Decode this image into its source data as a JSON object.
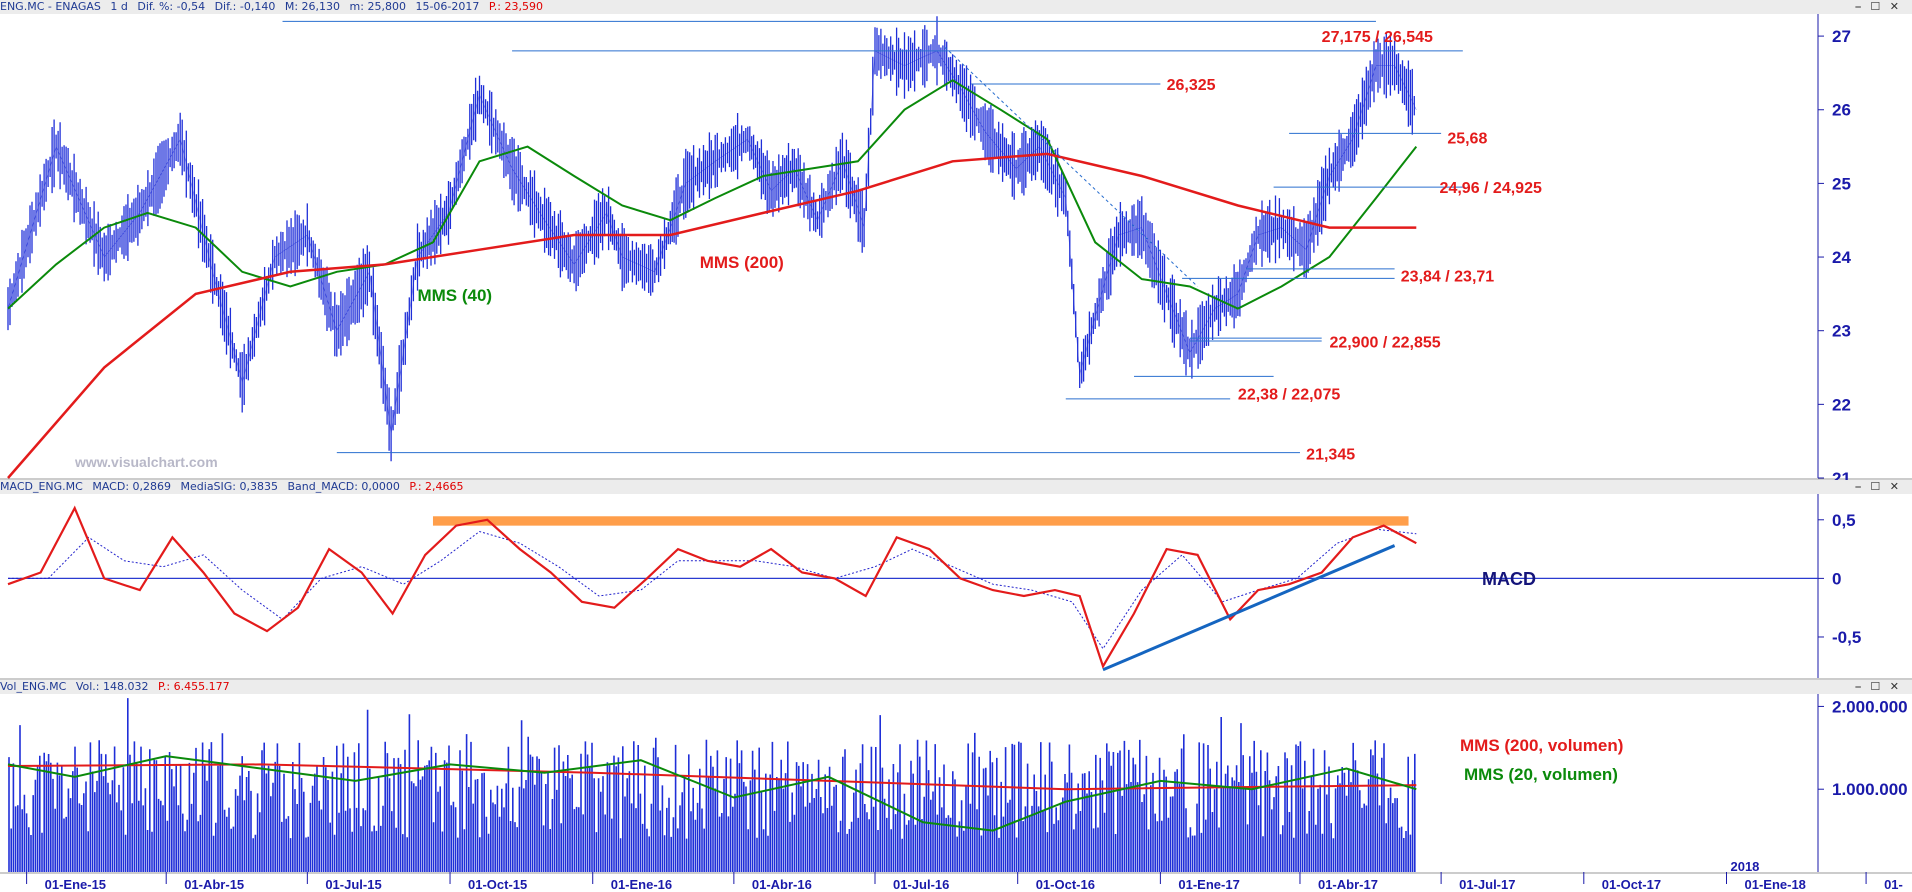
{
  "price_header": {
    "symbol": "ENG.MC - ENAGAS",
    "period": "1 d",
    "dif_pct": "Dif. %: -0,54",
    "dif": "Dif.: -0,140",
    "max": "M: 26,130",
    "min": "m: 25,800",
    "date": "15-06-2017",
    "p": "P.: 23,590"
  },
  "macd_header": {
    "name": "MACD_ENG.MC",
    "macd": "MACD: 0,2869",
    "signal": "MediaSIG: 0,3835",
    "band": "Band_MACD: 0,0000",
    "p": "P.: 2,4665"
  },
  "vol_header": {
    "name": "Vol_ENG.MC",
    "vol": "Vol.: 148.032",
    "p": "P.: 6.455.177"
  },
  "window_controls": "⎯ ☐ ✕",
  "colors": {
    "price": "#1f2fd8",
    "mms40": "#0b8a0b",
    "mms200": "#e31b1b",
    "level_line": "#2a6fcf",
    "macd": "#e31b1b",
    "signal": "#2222cc",
    "trend": "#1565c0",
    "band": "#ff9e4a",
    "axis_text": "#1a1aaa",
    "label_red": "#e31b1b"
  },
  "chart_data": [
    {
      "type": "line",
      "panel": "price",
      "ylim": [
        21,
        27.3
      ],
      "y_ticks": [
        "21",
        "22",
        "23",
        "24",
        "25",
        "26",
        "27"
      ],
      "x_dates": [
        "01-Ene-15",
        "01-Abr-15",
        "01-Jul-15",
        "01-Oct-15",
        "01-Ene-16",
        "01-Abr-16",
        "01-Jul-16",
        "01-Oct-16",
        "01-Ene-17",
        "01-Abr-17",
        "01-Jul-17",
        "01-Oct-17",
        "01-Ene-18",
        "01-"
      ],
      "x_year_marker": "2018",
      "series": [
        {
          "role": "price",
          "x": [
            "2014-12-20",
            "2015-01-20",
            "2015-02-20",
            "2015-03-15",
            "2015-04-10",
            "2015-05-01",
            "2015-05-20",
            "2015-06-10",
            "2015-07-01",
            "2015-07-20",
            "2015-08-10",
            "2015-08-24",
            "2015-09-10",
            "2015-09-30",
            "2015-10-20",
            "2015-11-10",
            "2015-12-01",
            "2015-12-20",
            "2016-01-10",
            "2016-01-20",
            "2016-02-10",
            "2016-03-01",
            "2016-03-20",
            "2016-04-10",
            "2016-04-25",
            "2016-05-10",
            "2016-05-25",
            "2016-06-10",
            "2016-06-24",
            "2016-07-01",
            "2016-07-20",
            "2016-08-10",
            "2016-08-25",
            "2016-09-10",
            "2016-09-30",
            "2016-10-15",
            "2016-11-01",
            "2016-11-10",
            "2016-11-20",
            "2016-12-05",
            "2016-12-20",
            "2017-01-05",
            "2017-01-20",
            "2017-02-05",
            "2017-02-20",
            "2017-03-05",
            "2017-03-20",
            "2017-04-05",
            "2017-04-20",
            "2017-05-05",
            "2017-05-20",
            "2017-06-01",
            "2017-06-15"
          ],
          "values": [
            23.3,
            25.5,
            24.0,
            24.6,
            25.6,
            23.8,
            22.3,
            24.0,
            24.3,
            23.0,
            23.8,
            21.6,
            24.0,
            24.6,
            26.2,
            25.2,
            24.5,
            23.9,
            24.6,
            24.0,
            23.8,
            25.0,
            25.3,
            25.6,
            24.9,
            25.2,
            24.5,
            25.3,
            24.4,
            26.8,
            26.6,
            26.8,
            26.3,
            25.7,
            25.2,
            25.5,
            24.8,
            22.4,
            23.2,
            24.3,
            24.4,
            23.5,
            22.7,
            23.3,
            23.5,
            24.3,
            24.4,
            24.1,
            25.1,
            25.6,
            26.6,
            26.6,
            26.0
          ]
        },
        {
          "name": "MMS (40)",
          "x": [
            "2014-12-20",
            "2015-01-20",
            "2015-02-20",
            "2015-03-20",
            "2015-04-20",
            "2015-05-20",
            "2015-06-20",
            "2015-07-20",
            "2015-08-20",
            "2015-09-20",
            "2015-10-20",
            "2015-11-20",
            "2015-12-20",
            "2016-01-20",
            "2016-02-20",
            "2016-03-20",
            "2016-04-20",
            "2016-05-20",
            "2016-06-20",
            "2016-07-20",
            "2016-08-20",
            "2016-09-20",
            "2016-10-20",
            "2016-11-20",
            "2016-12-20",
            "2017-01-20",
            "2017-02-20",
            "2017-03-20",
            "2017-04-20",
            "2017-05-20",
            "2017-06-15"
          ],
          "values": [
            23.3,
            23.9,
            24.4,
            24.6,
            24.4,
            23.8,
            23.6,
            23.8,
            23.9,
            24.2,
            25.3,
            25.5,
            25.1,
            24.7,
            24.5,
            24.8,
            25.1,
            25.2,
            25.3,
            26.0,
            26.4,
            26.0,
            25.6,
            24.2,
            23.7,
            23.6,
            23.3,
            23.6,
            24.0,
            24.8,
            25.5
          ]
        },
        {
          "name": "MMS (200)",
          "x": [
            "2014-12-20",
            "2015-02-20",
            "2015-04-20",
            "2015-06-20",
            "2015-08-20",
            "2015-10-20",
            "2015-12-20",
            "2016-02-20",
            "2016-04-20",
            "2016-06-20",
            "2016-08-20",
            "2016-10-20",
            "2016-12-20",
            "2017-02-20",
            "2017-04-20",
            "2017-06-15"
          ],
          "values": [
            21.0,
            22.5,
            23.5,
            23.8,
            23.9,
            24.1,
            24.3,
            24.3,
            24.6,
            24.9,
            25.3,
            25.4,
            25.1,
            24.7,
            24.4,
            24.4
          ]
        }
      ],
      "levels": [
        "27,175 / 26,545",
        "26,325",
        "25,68",
        "24,96 / 24,925",
        "23,84 / 23,71",
        "22,900 / 22,855",
        "22,38 / 22,075",
        "21,345"
      ],
      "watermark": "www.visualchart.com"
    },
    {
      "type": "line",
      "panel": "macd",
      "title": "MACD",
      "ylim": [
        -0.85,
        0.72
      ],
      "y_ticks": [
        "0,5",
        "0",
        "-0,5"
      ],
      "series": [
        {
          "role": "macd",
          "x": [
            "2014-12-20",
            "2015-01-10",
            "2015-02-01",
            "2015-02-20",
            "2015-03-15",
            "2015-04-05",
            "2015-04-25",
            "2015-05-15",
            "2015-06-05",
            "2015-06-25",
            "2015-07-15",
            "2015-08-05",
            "2015-08-25",
            "2015-09-15",
            "2015-10-05",
            "2015-10-25",
            "2015-11-15",
            "2015-12-05",
            "2015-12-25",
            "2016-01-15",
            "2016-02-05",
            "2016-02-25",
            "2016-03-15",
            "2016-04-05",
            "2016-04-25",
            "2016-05-15",
            "2016-06-05",
            "2016-06-25",
            "2016-07-15",
            "2016-08-05",
            "2016-08-25",
            "2016-09-15",
            "2016-10-05",
            "2016-10-25",
            "2016-11-10",
            "2016-11-25",
            "2016-12-15",
            "2017-01-05",
            "2017-01-25",
            "2017-02-15",
            "2017-03-05",
            "2017-03-25",
            "2017-04-15",
            "2017-05-05",
            "2017-05-25",
            "2017-06-15"
          ],
          "values": [
            -0.05,
            0.05,
            0.6,
            0.0,
            -0.1,
            0.35,
            0.05,
            -0.3,
            -0.45,
            -0.25,
            0.25,
            0.05,
            -0.3,
            0.2,
            0.45,
            0.5,
            0.25,
            0.05,
            -0.2,
            -0.25,
            0.0,
            0.25,
            0.15,
            0.1,
            0.25,
            0.05,
            0.0,
            -0.15,
            0.35,
            0.25,
            0.0,
            -0.1,
            -0.15,
            -0.1,
            -0.15,
            -0.75,
            -0.3,
            0.25,
            0.2,
            -0.35,
            -0.1,
            -0.05,
            0.05,
            0.35,
            0.45,
            0.3
          ]
        },
        {
          "role": "signal",
          "x": [
            "2014-12-20",
            "2015-01-15",
            "2015-02-10",
            "2015-03-05",
            "2015-03-30",
            "2015-04-25",
            "2015-05-20",
            "2015-06-15",
            "2015-07-10",
            "2015-08-05",
            "2015-09-01",
            "2015-09-25",
            "2015-10-20",
            "2015-11-15",
            "2015-12-10",
            "2016-01-05",
            "2016-02-01",
            "2016-02-25",
            "2016-03-20",
            "2016-04-15",
            "2016-05-10",
            "2016-06-05",
            "2016-07-01",
            "2016-07-25",
            "2016-08-20",
            "2016-09-15",
            "2016-10-10",
            "2016-11-05",
            "2016-11-25",
            "2016-12-20",
            "2017-01-15",
            "2017-02-10",
            "2017-03-05",
            "2017-03-30",
            "2017-04-25",
            "2017-05-20",
            "2017-06-15"
          ],
          "values": [
            0.0,
            0.0,
            0.35,
            0.15,
            0.1,
            0.2,
            -0.1,
            -0.35,
            0.0,
            0.1,
            -0.05,
            0.15,
            0.4,
            0.3,
            0.1,
            -0.15,
            -0.1,
            0.15,
            0.15,
            0.15,
            0.1,
            0.0,
            0.1,
            0.25,
            0.1,
            -0.05,
            -0.1,
            -0.2,
            -0.6,
            -0.1,
            0.2,
            -0.2,
            -0.1,
            0.0,
            0.3,
            0.42,
            0.38
          ]
        }
      ],
      "trendline": {
        "x": [
          "2016-11-25",
          "2017-06-01"
        ],
        "y": [
          -0.78,
          0.28
        ]
      },
      "band": {
        "x": [
          "2015-09-20",
          "2017-06-10"
        ],
        "y": [
          0.45,
          0.53
        ]
      }
    },
    {
      "type": "bar",
      "panel": "volume",
      "ylim": [
        0,
        2150000
      ],
      "y_ticks": [
        "2.000.000",
        "1.000.000"
      ],
      "series": [
        {
          "name": "MMS (200, volumen)",
          "x": [
            "2014-12-20",
            "2015-06-01",
            "2016-01-01",
            "2016-06-01",
            "2016-11-01",
            "2017-06-15"
          ],
          "values": [
            1280000,
            1300000,
            1200000,
            1100000,
            1000000,
            1050000
          ]
        },
        {
          "name": "MMS (20, volumen)",
          "x": [
            "2014-12-20",
            "2015-02-01",
            "2015-04-01",
            "2015-06-01",
            "2015-08-01",
            "2015-10-01",
            "2015-12-01",
            "2016-02-01",
            "2016-04-01",
            "2016-06-01",
            "2016-08-01",
            "2016-09-15",
            "2016-11-01",
            "2017-01-01",
            "2017-03-01",
            "2017-05-01",
            "2017-06-15"
          ],
          "values": [
            1300000,
            1150000,
            1400000,
            1250000,
            1100000,
            1300000,
            1200000,
            1350000,
            900000,
            1150000,
            600000,
            500000,
            850000,
            1100000,
            1000000,
            1250000,
            1000000
          ]
        }
      ]
    }
  ]
}
